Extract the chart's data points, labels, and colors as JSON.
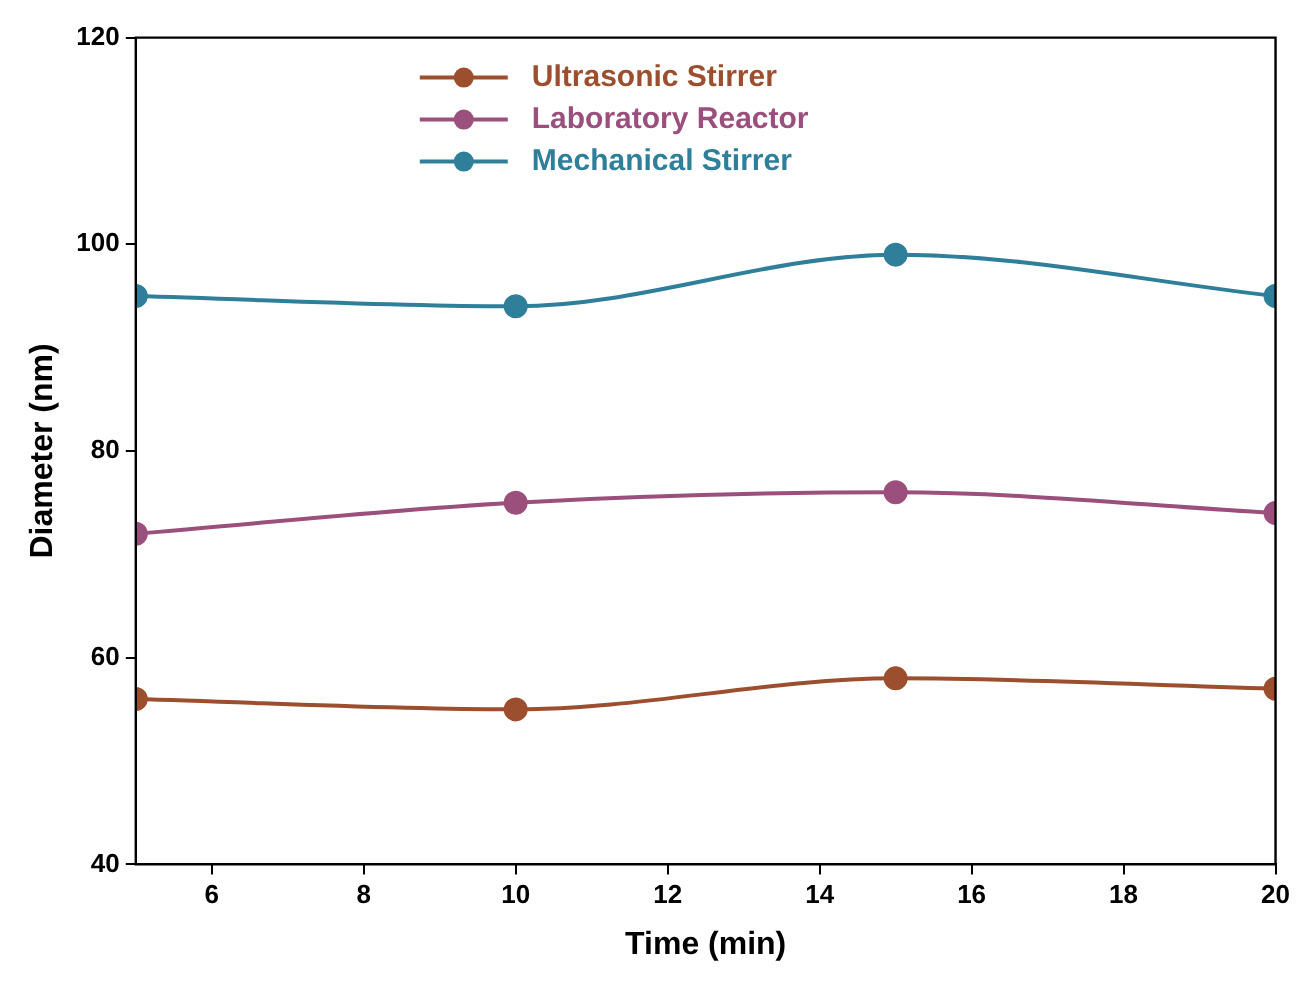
{
  "chart_data": {
    "type": "line",
    "xlabel": "Time (min)",
    "ylabel": "Diameter (nm)",
    "x": [
      5,
      10,
      15,
      20
    ],
    "series": [
      {
        "name": "Ultrasonic Stirrer",
        "color": "#9c4f2e",
        "values": [
          56,
          55,
          58,
          57
        ]
      },
      {
        "name": "Laboratory Reactor",
        "color": "#9b4f7c",
        "values": [
          72,
          75,
          76,
          74
        ]
      },
      {
        "name": "Mechanical Stirrer",
        "color": "#2f7f9a",
        "values": [
          95,
          94,
          99,
          95
        ]
      }
    ],
    "xlim": [
      5,
      20
    ],
    "xticks": [
      6,
      8,
      10,
      12,
      14,
      16,
      18,
      20
    ],
    "ylim": [
      40,
      120
    ],
    "yticks": [
      40,
      60,
      80,
      100,
      120
    ],
    "grid": false,
    "legend": "top",
    "marker": "circle",
    "line_style": "solid"
  }
}
